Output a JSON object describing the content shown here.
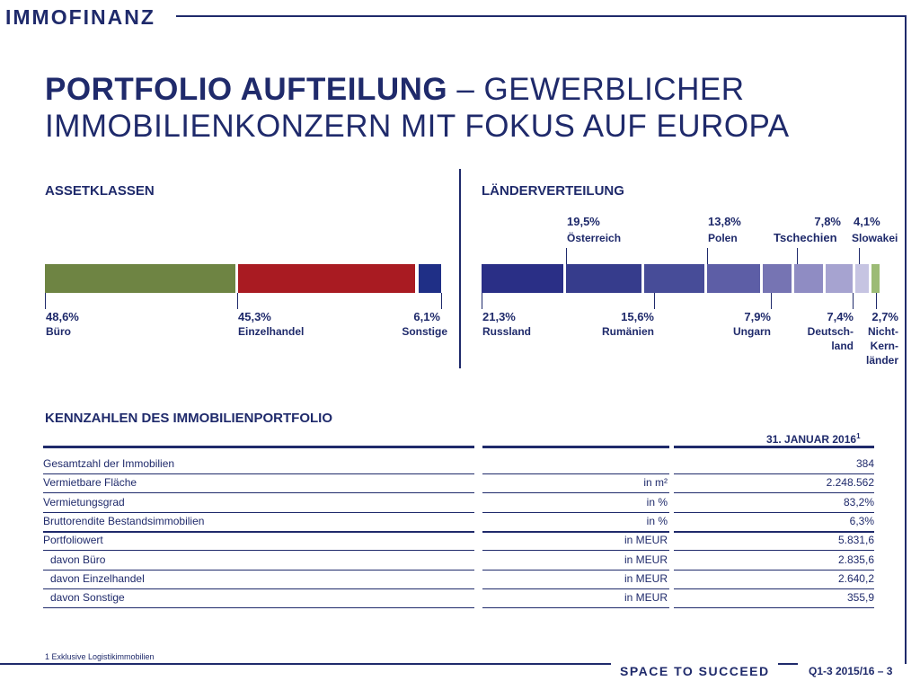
{
  "header": {
    "logo": "IMMOFINANZ"
  },
  "title": {
    "bold": "PORTFOLIO AUFTEILUNG",
    "rest": " – GEWERBLICHER",
    "line2": "IMMOBILIENKONZERN MIT FOKUS AUF EUROPA"
  },
  "assets": {
    "heading": "ASSETKLASSEN",
    "segments": [
      {
        "pct": "48,6%",
        "label": "Büro",
        "value": 48.6,
        "color": "#6e8443"
      },
      {
        "pct": "45,3%",
        "label": "Einzelhandel",
        "value": 45.3,
        "color": "#a91b22"
      },
      {
        "pct": "6,1%",
        "label": "Sonstige",
        "value": 6.1,
        "color": "#1f2f86"
      }
    ]
  },
  "countries": {
    "heading": "LÄNDERVERTEILUNG",
    "segments": [
      {
        "pct": "21,3%",
        "label": "Russland",
        "value": 21.3,
        "color": "#2a2f86"
      },
      {
        "pct": "19,5%",
        "label": "Österreich",
        "value": 19.5,
        "color": "#363c8c"
      },
      {
        "pct": "15,6%",
        "label": "Rumänien",
        "value": 15.6,
        "color": "#474c98"
      },
      {
        "pct": "13,8%",
        "label": "Polen",
        "value": 13.8,
        "color": "#5d5ea6"
      },
      {
        "pct": "7,9%",
        "label": "Ungarn",
        "value": 7.9,
        "color": "#7674b3"
      },
      {
        "pct": "7,8%",
        "label": "Tschechien",
        "value": 7.8,
        "color": "#8f8cc3"
      },
      {
        "pct": "7,4%",
        "label": "Deutsch-land",
        "label_l1": "Deutsch-",
        "label_l2": "land",
        "value": 7.4,
        "color": "#a6a3d0"
      },
      {
        "pct": "4,1%",
        "label": "Slowakei",
        "value": 4.1,
        "color": "#c6c4e2"
      },
      {
        "pct": "2,7%",
        "label": "Nicht-Kern-länder",
        "label_l1": "Nicht-",
        "label_l2": "Kern-",
        "label_l3": "länder",
        "value": 2.7,
        "color": "#9cbb76"
      }
    ]
  },
  "table": {
    "heading": "KENNZAHLEN DES IMMOBILIENPORTFOLIO",
    "date_header": "31. JANUAR 2016",
    "date_sup": "1",
    "rows": [
      {
        "label": "Gesamtzahl der Immobilien",
        "unit": "",
        "value": "384"
      },
      {
        "label": "Vermietbare Fläche",
        "unit": "in m²",
        "value": "2.248.562"
      },
      {
        "label": "Vermietungsgrad",
        "unit": "in %",
        "value": "83,2%"
      },
      {
        "label": "Bruttorendite Bestandsimmobilien",
        "unit": "in %",
        "value": "6,3%"
      },
      {
        "label": "Portfoliowert",
        "unit": "in MEUR",
        "value": "5.831,6"
      },
      {
        "label": "davon Büro",
        "unit": "in MEUR",
        "value": "2.835,6"
      },
      {
        "label": "davon Einzelhandel",
        "unit": "in MEUR",
        "value": "2.640,2"
      },
      {
        "label": "davon Sonstige",
        "unit": "in MEUR",
        "value": "355,9"
      }
    ]
  },
  "footer": {
    "footnote": "1 Exklusive Logistikimmobilien",
    "slogan": "SPACE TO SUCCEED",
    "page": "Q1-3 2015/16 – 3"
  }
}
